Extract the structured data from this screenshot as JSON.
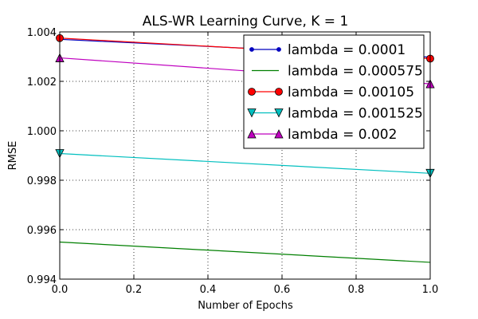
{
  "chart_data": {
    "type": "line",
    "title": "ALS-WR Learning Curve,  K = 1",
    "xlabel": "Number of Epochs",
    "ylabel": "RMSE",
    "xlim": [
      0.0,
      1.0
    ],
    "ylim": [
      0.994,
      1.004
    ],
    "xticks": [
      "0.0",
      "0.2",
      "0.4",
      "0.6",
      "0.8",
      "1.0"
    ],
    "yticks": [
      "0.994",
      "0.996",
      "0.998",
      "1.000",
      "1.002",
      "1.004"
    ],
    "grid": true,
    "legend_position": "top-right",
    "x": [
      0.0,
      1.0
    ],
    "series": [
      {
        "name": "lambda = 0.0001",
        "values": [
          1.0037,
          1.00298
        ],
        "color": "#0000bf",
        "marker": "dot"
      },
      {
        "name": "lambda = 0.000575",
        "values": [
          0.9955,
          0.99468
        ],
        "color": "#007f00",
        "marker": "none"
      },
      {
        "name": "lambda = 0.00105",
        "values": [
          1.00375,
          1.00292
        ],
        "color": "#ff0000",
        "marker": "circle"
      },
      {
        "name": "lambda = 0.001525",
        "values": [
          0.99908,
          0.99828
        ],
        "color": "#00bfbf",
        "marker": "triangle-down"
      },
      {
        "name": "lambda = 0.002",
        "values": [
          1.00295,
          1.0019
        ],
        "color": "#bf00bf",
        "marker": "triangle-up"
      }
    ]
  }
}
